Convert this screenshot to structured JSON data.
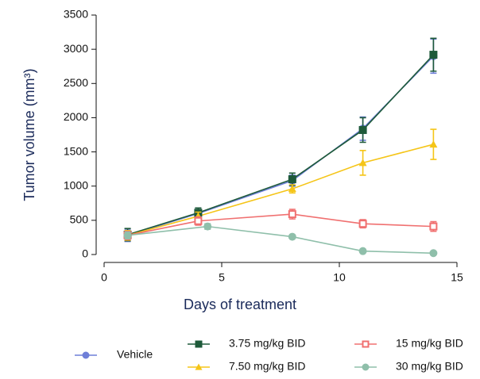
{
  "chart_data": {
    "type": "line",
    "x_label": "Days of treatment",
    "y_label": "Tumor volume (mm³)",
    "xlim": [
      0,
      15
    ],
    "xticks": [
      0,
      5,
      10,
      15
    ],
    "ylim": [
      0,
      3500
    ],
    "yticks": [
      0,
      500,
      1000,
      1500,
      2000,
      2500,
      3000,
      3500
    ],
    "series": [
      {
        "name": "Vehicle",
        "color": "#6f7fd8",
        "marker": "circle",
        "x": [
          1,
          4,
          8,
          11,
          14
        ],
        "values": [
          280,
          600,
          1080,
          1840,
          2900
        ],
        "errors": [
          90,
          80,
          80,
          170,
          250
        ]
      },
      {
        "name": "3.75 mg/kg BID",
        "color": "#1e5a3a",
        "marker": "square",
        "x": [
          1,
          4,
          8,
          11,
          14
        ],
        "values": [
          290,
          610,
          1100,
          1820,
          2920
        ],
        "errors": [
          90,
          70,
          90,
          180,
          240
        ]
      },
      {
        "name": "7.50 mg/kg BID",
        "color": "#f5c518",
        "marker": "triangle",
        "x": [
          1,
          4,
          8,
          11,
          14
        ],
        "values": [
          280,
          560,
          960,
          1340,
          1610
        ],
        "errors": [
          70,
          60,
          60,
          180,
          220
        ]
      },
      {
        "name": "15 mg/kg BID",
        "color": "#f07070",
        "marker": "open-square",
        "x": [
          1,
          4,
          8,
          11,
          14
        ],
        "values": [
          280,
          490,
          590,
          450,
          410
        ],
        "errors": [
          60,
          60,
          70,
          60,
          70
        ]
      },
      {
        "name": "30 mg/kg BID",
        "color": "#8fbfaa",
        "marker": "circle",
        "x": [
          1,
          4.4,
          8,
          11,
          14
        ],
        "values": [
          280,
          410,
          260,
          50,
          20
        ],
        "errors": [
          50,
          40,
          20,
          10,
          10
        ]
      }
    ]
  }
}
